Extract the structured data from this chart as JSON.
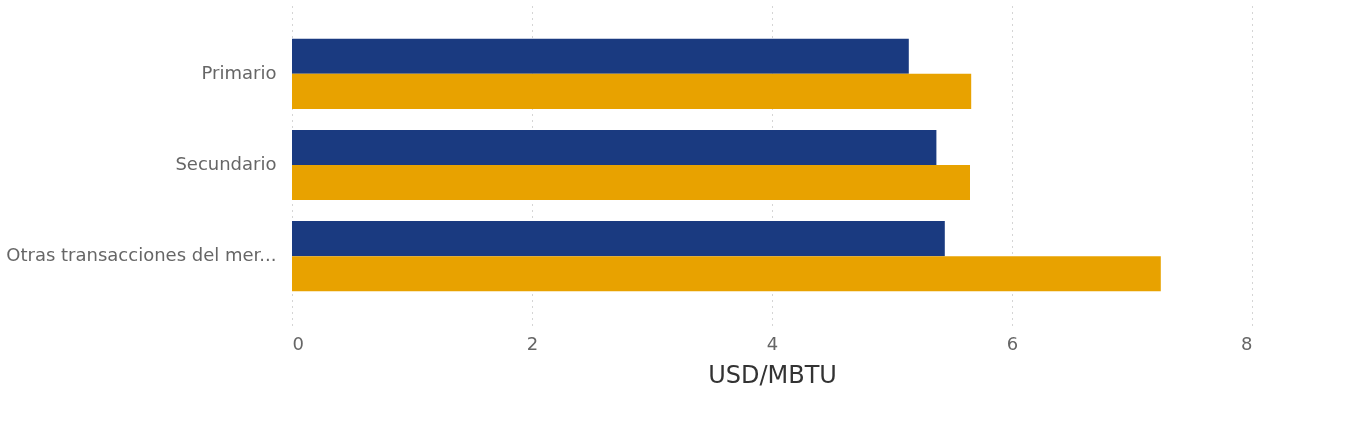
{
  "chart_data": {
    "type": "bar",
    "orientation": "horizontal",
    "xlabel": "USD/MBTU",
    "categories": [
      "Primario",
      "Secundario",
      "Otras transacciones del mer..."
    ],
    "series": [
      {
        "color": "#1a3a80",
        "values": [
          5.14,
          5.37,
          5.44
        ]
      },
      {
        "color": "#e8a200",
        "values": [
          5.66,
          5.65,
          7.24
        ]
      }
    ],
    "xlim": [
      0,
      8
    ],
    "xticks": [
      0,
      2,
      4,
      6,
      8
    ],
    "grid": "x"
  }
}
